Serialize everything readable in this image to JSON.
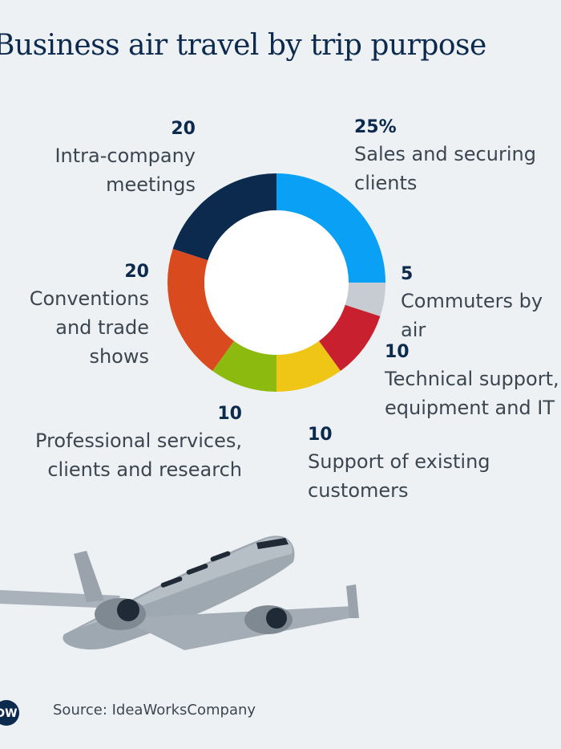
{
  "title": "Business air travel by trip purpose",
  "chart_data": {
    "type": "pie",
    "variant": "donut",
    "title": "Business air travel by trip purpose",
    "slices": [
      {
        "label": "Sales and securing clients",
        "value": 25,
        "value_label": "25%",
        "color": "#0aa0f5"
      },
      {
        "label": "Commuters by air",
        "value": 5,
        "value_label": "5",
        "color": "#c6ccd2"
      },
      {
        "label": "Technical support, equipment and IT",
        "value": 10,
        "value_label": "10",
        "color": "#c8202e"
      },
      {
        "label": "Support of existing customers",
        "value": 10,
        "value_label": "10",
        "color": "#efc616"
      },
      {
        "label": "Professional services, clients and research",
        "value": 10,
        "value_label": "10",
        "color": "#8dba0e"
      },
      {
        "label": "Conventions and trade shows",
        "value": 20,
        "value_label": "20",
        "color": "#d94b1e"
      },
      {
        "label": "Intra-company meetings",
        "value": 20,
        "value_label": "20",
        "color": "#0c2a4e"
      }
    ]
  },
  "labels": {
    "sales": {
      "value": "25%",
      "text": "Sales and securing\nclients"
    },
    "commuters": {
      "value": "5",
      "text": "Commuters by air"
    },
    "technical": {
      "value": "10",
      "text": "Technical support,\nequipment and IT"
    },
    "support": {
      "value": "10",
      "text": "Support of existing\ncustomers"
    },
    "professional": {
      "value": "10",
      "text": "Professional services,\nclients and research"
    },
    "conventions": {
      "value": "20",
      "text": "Conventions\nand trade\nshows"
    },
    "intra": {
      "value": "20",
      "text": "Intra-company\nmeetings"
    }
  },
  "footer": {
    "logo_text": "DW",
    "source": "Source: IdeaWorksCompany"
  },
  "illustration": {
    "icon": "airplane-icon"
  }
}
